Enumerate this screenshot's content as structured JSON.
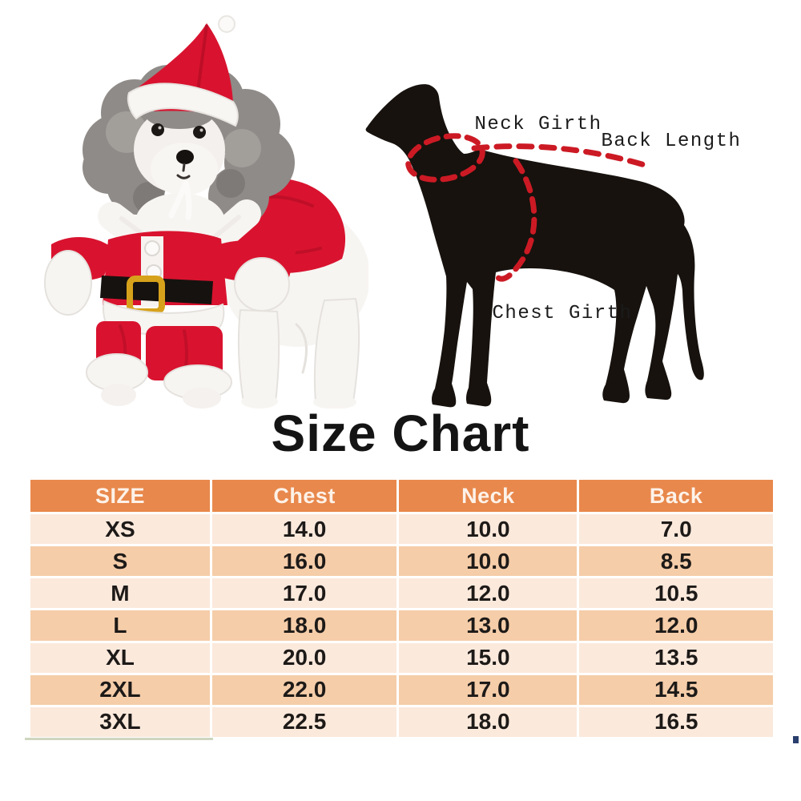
{
  "page": {
    "background": "#ffffff"
  },
  "photo": {
    "description": "Gray-and-white poodle wearing a red Santa costume: Santa hat, white fleece collar, red jacket with two white buttons, black belt with gold buckle, red pants with white cuffs",
    "colors": {
      "santa_red": "#d9132f",
      "santa_red_dark": "#ab0c23",
      "fur_gray": "#8f8b88",
      "fur_gray_dark": "#6e6a67",
      "fur_gray_light": "#aaa6a3",
      "fur_white": "#f7f5f2",
      "fur_white_shade": "#e5e2de",
      "belt_black": "#16120f",
      "buckle_gold": "#d7a21b"
    }
  },
  "diagram": {
    "labels": {
      "neck_girth": "Neck Girth",
      "back_length": "Back Length",
      "chest_girth": "Chest Girth"
    },
    "colors": {
      "silhouette_black": "#17120e",
      "dash_red": "#cc1a24",
      "label_text": "#1b1b1b"
    }
  },
  "chart_data": {
    "type": "table",
    "title": "Size Chart",
    "columns": [
      "SIZE",
      "Chest",
      "Neck",
      "Back"
    ],
    "rows": [
      [
        "XS",
        "14.0",
        "10.0",
        "7.0"
      ],
      [
        "S",
        "16.0",
        "10.0",
        "8.5"
      ],
      [
        "M",
        "17.0",
        "12.0",
        "10.5"
      ],
      [
        "L",
        "18.0",
        "13.0",
        "12.0"
      ],
      [
        "XL",
        "20.0",
        "15.0",
        "13.5"
      ],
      [
        "2XL",
        "22.0",
        "17.0",
        "14.5"
      ],
      [
        "3XL",
        "22.5",
        "18.0",
        "16.5"
      ]
    ],
    "style": {
      "header_bg": "#e8884c",
      "header_text": "#fdf2e9",
      "row_light_bg": "#fbe9dc",
      "row_dark_bg": "#f5cda9",
      "cell_text": "#1d1a18",
      "grid_white": "#ffffff"
    }
  }
}
